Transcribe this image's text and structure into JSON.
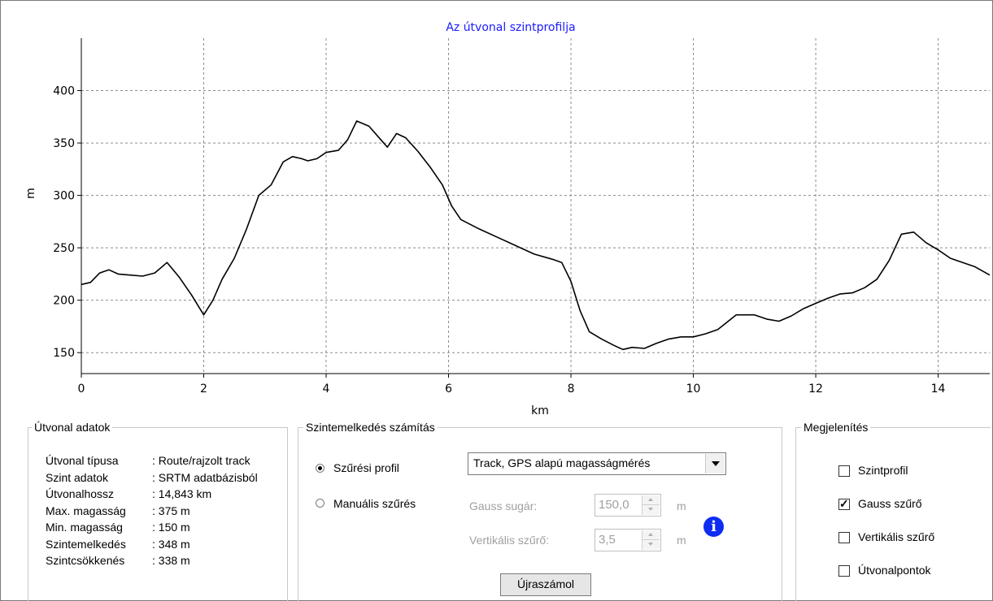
{
  "chart_data": {
    "type": "line",
    "title": "Az útvonal szintprofilja",
    "xlabel": "km",
    "ylabel": "m",
    "xlim": [
      0,
      14.843
    ],
    "ylim": [
      130,
      450
    ],
    "xticks": [
      0,
      2,
      4,
      6,
      8,
      10,
      12,
      14
    ],
    "yticks": [
      150,
      200,
      250,
      300,
      350,
      400
    ],
    "grid": true,
    "series": [
      {
        "color": "#000000",
        "points": [
          [
            0.0,
            215
          ],
          [
            0.15,
            217
          ],
          [
            0.3,
            226
          ],
          [
            0.45,
            229
          ],
          [
            0.6,
            225
          ],
          [
            0.8,
            224
          ],
          [
            1.0,
            223
          ],
          [
            1.2,
            226
          ],
          [
            1.4,
            236
          ],
          [
            1.6,
            222
          ],
          [
            1.8,
            205
          ],
          [
            2.0,
            186
          ],
          [
            2.15,
            200
          ],
          [
            2.3,
            220
          ],
          [
            2.5,
            240
          ],
          [
            2.7,
            268
          ],
          [
            2.9,
            300
          ],
          [
            3.1,
            310
          ],
          [
            3.3,
            332
          ],
          [
            3.45,
            337
          ],
          [
            3.6,
            335
          ],
          [
            3.7,
            333
          ],
          [
            3.85,
            335
          ],
          [
            4.0,
            341
          ],
          [
            4.2,
            343
          ],
          [
            4.35,
            353
          ],
          [
            4.5,
            371
          ],
          [
            4.7,
            366
          ],
          [
            4.85,
            356
          ],
          [
            5.0,
            346
          ],
          [
            5.15,
            359
          ],
          [
            5.3,
            355
          ],
          [
            5.5,
            342
          ],
          [
            5.7,
            327
          ],
          [
            5.9,
            310
          ],
          [
            6.05,
            290
          ],
          [
            6.2,
            277
          ],
          [
            6.5,
            268
          ],
          [
            6.8,
            260
          ],
          [
            7.1,
            252
          ],
          [
            7.4,
            244
          ],
          [
            7.7,
            239
          ],
          [
            7.85,
            236
          ],
          [
            8.0,
            218
          ],
          [
            8.15,
            190
          ],
          [
            8.3,
            170
          ],
          [
            8.5,
            163
          ],
          [
            8.7,
            157
          ],
          [
            8.85,
            153
          ],
          [
            9.0,
            155
          ],
          [
            9.2,
            154
          ],
          [
            9.4,
            159
          ],
          [
            9.6,
            163
          ],
          [
            9.8,
            165
          ],
          [
            10.0,
            165
          ],
          [
            10.2,
            168
          ],
          [
            10.4,
            172
          ],
          [
            10.55,
            179
          ],
          [
            10.7,
            186
          ],
          [
            11.0,
            186
          ],
          [
            11.2,
            182
          ],
          [
            11.4,
            180
          ],
          [
            11.6,
            185
          ],
          [
            11.8,
            192
          ],
          [
            12.0,
            197
          ],
          [
            12.2,
            202
          ],
          [
            12.4,
            206
          ],
          [
            12.6,
            207
          ],
          [
            12.8,
            212
          ],
          [
            13.0,
            220
          ],
          [
            13.2,
            238
          ],
          [
            13.4,
            263
          ],
          [
            13.6,
            265
          ],
          [
            13.8,
            255
          ],
          [
            14.0,
            248
          ],
          [
            14.2,
            240
          ],
          [
            14.4,
            236
          ],
          [
            14.6,
            232
          ],
          [
            14.843,
            224
          ]
        ]
      }
    ]
  },
  "route_group": {
    "title": "Útvonal adatok",
    "rows": [
      {
        "label": "Útvonal típusa",
        "value": ": Route/rajzolt track"
      },
      {
        "label": "Szint adatok",
        "value": ": SRTM adatbázisból"
      },
      {
        "label": "Útvonalhossz",
        "value": ": 14,843 km"
      },
      {
        "label": "Max. magasság",
        "value": ": 375 m"
      },
      {
        "label": "Min. magasság",
        "value": ": 150 m"
      },
      {
        "label": "Szintemelkedés",
        "value": ": 348 m"
      },
      {
        "label": "Szintcsökkenés",
        "value": ": 338 m"
      }
    ]
  },
  "elevation_group": {
    "title": "Szintemelkedés számítás",
    "radio_filter_profile": "Szűrési profil",
    "radio_manual": "Manuális szűrés",
    "profile_select": "Track, GPS alapú magasságmérés",
    "gauss_label": "Gauss sugár:",
    "gauss_value": "150,0",
    "gauss_unit": "m",
    "vertical_label": "Vertikális szűrő:",
    "vertical_value": "3,5",
    "vertical_unit": "m",
    "recalc_button": "Újraszámol"
  },
  "display_group": {
    "title": "Megjelenítés",
    "options": [
      {
        "label": "Szintprofil",
        "checked": false
      },
      {
        "label": "Gauss szűrő",
        "checked": true
      },
      {
        "label": "Vertikális szűrő",
        "checked": false
      },
      {
        "label": "Útvonalpontok",
        "checked": false
      }
    ]
  }
}
